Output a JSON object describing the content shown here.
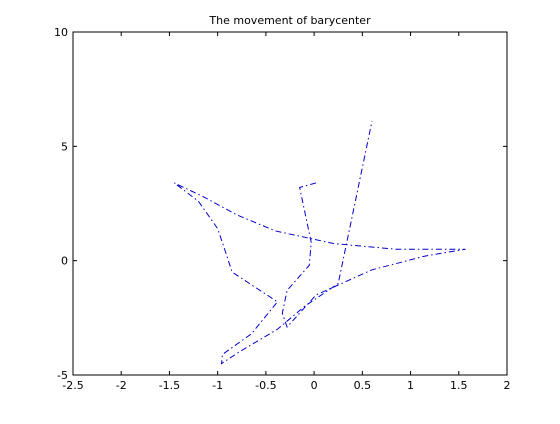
{
  "chart_data": {
    "type": "line",
    "title": "The movement of barycenter",
    "xlabel": "",
    "ylabel": "",
    "xlim": [
      -2.5,
      2
    ],
    "ylim": [
      -5,
      10
    ],
    "xticks": [
      -2.5,
      -2,
      -1.5,
      -1,
      -0.5,
      0,
      0.5,
      1,
      1.5,
      2
    ],
    "yticks": [
      -5,
      0,
      5,
      10
    ],
    "xtick_labels": [
      "-2.5",
      "-2",
      "-1.5",
      "-1",
      "-0.5",
      "0",
      "0.5",
      "1",
      "1.5",
      "2"
    ],
    "ytick_labels": [
      "-5",
      "0",
      "5",
      "10"
    ],
    "grid": false,
    "legend": "none",
    "line_color": "#0000cc",
    "line_style": "dash-dot",
    "series": [
      {
        "x": [
          0.02,
          -0.15,
          -0.03,
          -0.05,
          -0.28,
          -0.33,
          -0.28,
          0.02,
          0.6,
          1.15,
          1.57,
          0.85,
          0.2,
          -0.4,
          -0.8,
          -1.15,
          -1.45,
          -1.2,
          -1.0,
          -0.92,
          -0.85,
          -0.38,
          -0.65,
          -0.95,
          -0.96,
          -0.78,
          -0.38,
          -0.1,
          0.25,
          0.6
        ],
        "y": [
          3.4,
          3.2,
          0.8,
          -0.2,
          -1.3,
          -2.3,
          -2.9,
          -1.5,
          -0.4,
          0.2,
          0.5,
          0.5,
          0.75,
          1.3,
          2.0,
          2.8,
          3.4,
          2.6,
          1.4,
          0.4,
          -0.5,
          -1.8,
          -3.2,
          -4.1,
          -4.5,
          -4.0,
          -3.0,
          -2.0,
          -1.0,
          6.1
        ]
      }
    ]
  }
}
